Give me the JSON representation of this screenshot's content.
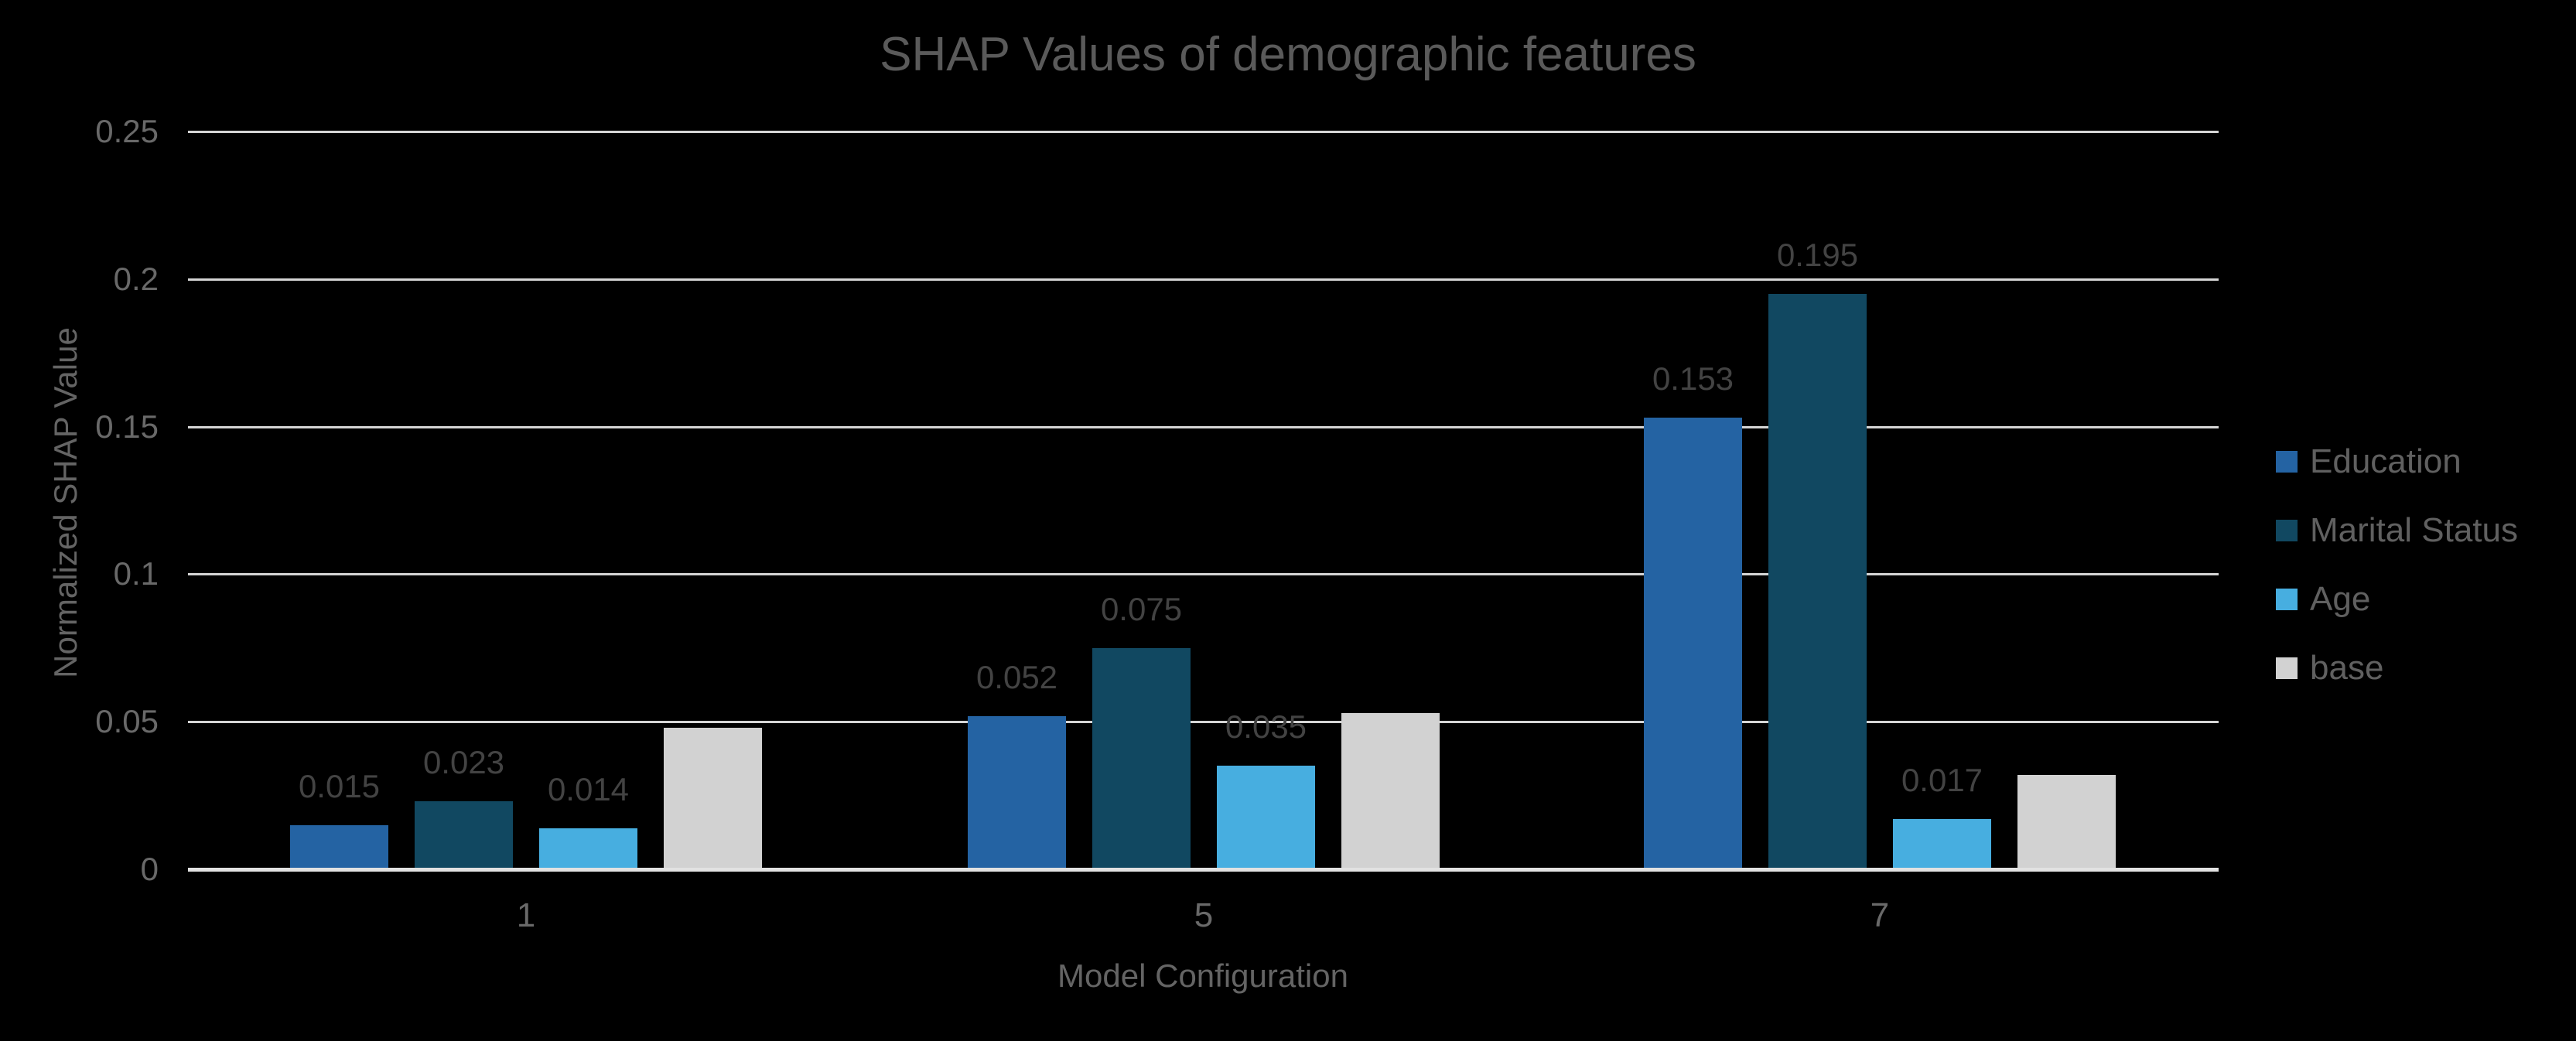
{
  "colors": {
    "background": "#000000",
    "gridline": "#d5d5d5",
    "baseline": "#e2e2e2",
    "title_text": "#5a5a5a",
    "tick_text": "#696969",
    "axis_title_text": "#646464",
    "legend_text": "#606060",
    "data_label_text": "#434343"
  },
  "chart_data": {
    "type": "bar",
    "title": "SHAP Values of demographic features",
    "xlabel": "Model Configuration",
    "ylabel": "Normalized SHAP Value",
    "categories": [
      "1",
      "5",
      "7"
    ],
    "series": [
      {
        "name": "Education",
        "color": "#2463a3",
        "values": [
          0.015,
          0.052,
          0.153
        ],
        "labels": [
          "0.015",
          "0.052",
          "0.153"
        ]
      },
      {
        "name": "Marital Status",
        "color": "#114861",
        "values": [
          0.023,
          0.075,
          0.195
        ],
        "labels": [
          "0.023",
          "0.075",
          "0.195"
        ]
      },
      {
        "name": "Age",
        "color": "#47aee0",
        "values": [
          0.014,
          0.035,
          0.017
        ],
        "labels": [
          "0.014",
          "0.035",
          "0.017"
        ]
      },
      {
        "name": "base",
        "color": "#d2d2d2",
        "values": [
          0.048,
          0.053,
          0.032
        ],
        "labels": [
          null,
          null,
          null
        ]
      }
    ],
    "ylim": [
      0,
      0.25
    ],
    "yticks": [
      {
        "label": "0.25",
        "value": 0.25
      },
      {
        "label": "0.2",
        "value": 0.2
      },
      {
        "label": "0.15",
        "value": 0.15
      },
      {
        "label": "0.1",
        "value": 0.1
      },
      {
        "label": "0.05",
        "value": 0.05
      },
      {
        "label": "0",
        "value": 0
      }
    ],
    "grid": true,
    "legend_position": "right"
  }
}
